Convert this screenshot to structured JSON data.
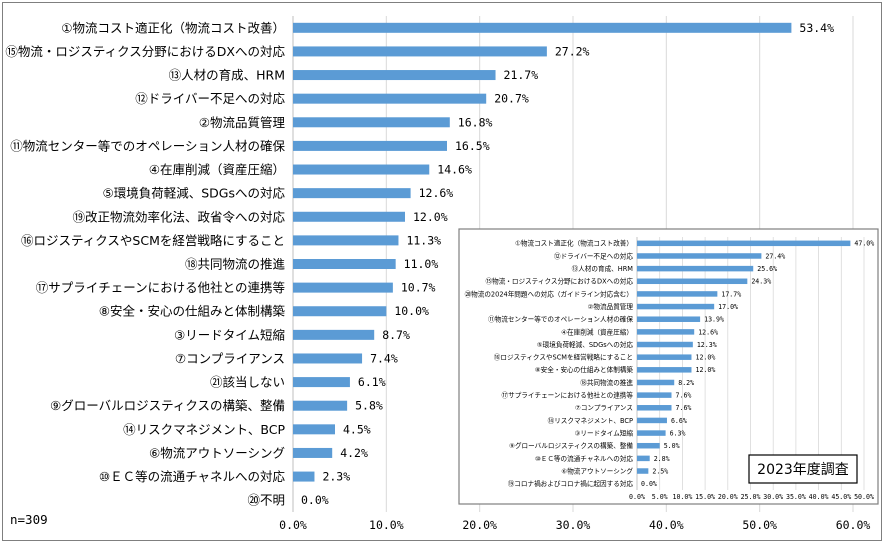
{
  "sample_size": "n=309",
  "inset_label": "2023年度調査",
  "colors": {
    "bar": "#5b9bd5",
    "grid": "#d9d9d9",
    "frame": "#7f7f7f"
  },
  "chart_data": [
    {
      "type": "bar",
      "orientation": "horizontal",
      "title": "",
      "xlim": [
        0,
        60
      ],
      "x_ticks": [
        "0.0%",
        "10.0%",
        "20.0%",
        "30.0%",
        "40.0%",
        "50.0%",
        "60.0%"
      ],
      "grid": true,
      "categories": [
        "①物流コスト適正化（物流コスト改善）",
        "⑮物流・ロジスティクス分野におけるDXへの対応",
        "⑬人材の育成、HRM",
        "⑫ドライバー不足への対応",
        "②物流品質管理",
        "⑪物流センター等でのオペレーション人材の確保",
        "④在庫削減（資産圧縮）",
        "⑤環境負荷軽減、SDGsへの対応",
        "⑲改正物流効率化法、政省令への対応",
        "⑯ロジスティクスやSCMを経営戦略にすること",
        "⑱共同物流の推進",
        "⑰サプライチェーンにおける他社との連携等",
        "⑧安全・安心の仕組みと体制構築",
        "③リードタイム短縮",
        "⑦コンプライアンス",
        "㉑該当しない",
        "⑨グローバルロジスティクスの構築、整備",
        "⑭リスクマネジメント、BCP",
        "⑥物流アウトソーシング",
        "⑩ＥＣ等の流通チャネルへの対応",
        "⑳不明"
      ],
      "values": [
        53.4,
        27.2,
        21.7,
        20.7,
        16.8,
        16.5,
        14.6,
        12.6,
        12.0,
        11.3,
        11.0,
        10.7,
        10.0,
        8.7,
        7.4,
        6.1,
        5.8,
        4.5,
        4.2,
        2.3,
        0.0
      ],
      "value_labels": [
        "53.4%",
        "27.2%",
        "21.7%",
        "20.7%",
        "16.8%",
        "16.5%",
        "14.6%",
        "12.6%",
        "12.0%",
        "11.3%",
        "11.0%",
        "10.7%",
        "10.0%",
        "8.7%",
        "7.4%",
        "6.1%",
        "5.8%",
        "4.5%",
        "4.2%",
        "2.3%",
        "0.0%"
      ]
    },
    {
      "type": "bar",
      "orientation": "horizontal",
      "title": "2023年度調査",
      "xlim": [
        0,
        50
      ],
      "x_ticks": [
        "0.0%",
        "5.0%",
        "10.0%",
        "15.0%",
        "20.0%",
        "25.0%",
        "30.0%",
        "35.0%",
        "40.0%",
        "45.0%",
        "50.0%"
      ],
      "grid": true,
      "categories": [
        "①物流コスト適正化（物流コスト改善）",
        "⑫ドライバー不足への対応",
        "⑬人材の育成、HRM",
        "⑮物流・ロジスティクス分野におけるDXへの対応",
        "⑳物流の2024年問題への対応（ガイドライン対応含む）",
        "②物流品質管理",
        "⑪物流センター等でのオペレーション人材の確保",
        "④在庫削減（資産圧縮）",
        "⑤環境負荷軽減、SDGsへの対応",
        "⑯ロジスティクスやSCMを経営戦略にすること",
        "⑧安全・安心の仕組みと体制構築",
        "⑱共同物流の推進",
        "⑰サプライチェーンにおける他社との連携等",
        "⑦コンプライアンス",
        "⑭リスクマネジメント、BCP",
        "③リードタイム短縮",
        "⑨グローバルロジスティクスの構築、整備",
        "⑩ＥＣ等の流通チャネルへの対応",
        "⑥物流アウトソーシング",
        "⑲コロナ禍およびコロナ禍に起因する対応"
      ],
      "values": [
        47.0,
        27.4,
        25.6,
        24.3,
        17.7,
        17.0,
        13.9,
        12.6,
        12.3,
        12.0,
        12.0,
        8.2,
        7.6,
        7.6,
        6.6,
        6.3,
        5.0,
        2.8,
        2.5,
        0.0
      ],
      "value_labels": [
        "47.0%",
        "27.4%",
        "25.6%",
        "24.3%",
        "17.7%",
        "17.0%",
        "13.9%",
        "12.6%",
        "12.3%",
        "12.0%",
        "12.0%",
        "8.2%",
        "7.6%",
        "7.6%",
        "6.6%",
        "6.3%",
        "5.0%",
        "2.8%",
        "2.5%",
        "0.0%"
      ]
    }
  ]
}
